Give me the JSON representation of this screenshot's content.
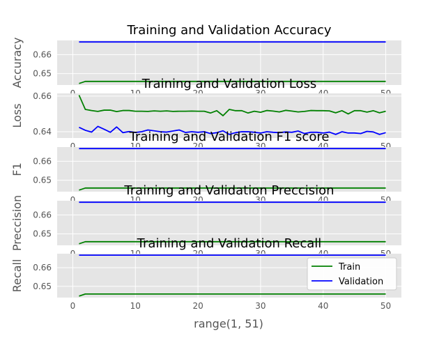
{
  "colors": {
    "train": "#008000",
    "validation": "#0000ff",
    "panel_bg": "#e5e5e5",
    "grid": "#ffffff"
  },
  "legend": {
    "train_label": "Train",
    "validation_label": "Validation",
    "placement": "lower-right-of-last-panel"
  },
  "xlabel": "range(1, 51)",
  "chart_data": [
    {
      "type": "line",
      "title": "Training and Validation Accuracy",
      "ylabel": "Accuracy",
      "xlim": [
        -2.5,
        52.5
      ],
      "ylim": [
        0.644,
        0.6675
      ],
      "yticks": [
        "0.65",
        "0.66"
      ],
      "ytick_values": [
        0.65,
        0.66
      ],
      "xticks": [
        "0",
        "10",
        "20",
        "30",
        "40",
        "50"
      ],
      "xtick_values": [
        0,
        10,
        20,
        30,
        40,
        50
      ],
      "x": [
        1,
        2,
        3,
        4,
        5,
        6,
        7,
        8,
        9,
        10,
        11,
        12,
        13,
        14,
        15,
        16,
        17,
        18,
        19,
        20,
        21,
        22,
        23,
        24,
        25,
        26,
        27,
        28,
        29,
        30,
        31,
        32,
        33,
        34,
        35,
        36,
        37,
        38,
        39,
        40,
        41,
        42,
        43,
        44,
        45,
        46,
        47,
        48,
        49,
        50
      ],
      "series": [
        {
          "name": "Train",
          "values": [
            0.6448,
            0.6459,
            0.6459,
            0.6459,
            0.6459,
            0.6459,
            0.6459,
            0.6459,
            0.6459,
            0.6459,
            0.6459,
            0.6459,
            0.6459,
            0.6459,
            0.6459,
            0.6459,
            0.6459,
            0.6459,
            0.6459,
            0.6459,
            0.6459,
            0.6459,
            0.6459,
            0.6459,
            0.6459,
            0.6459,
            0.6459,
            0.6459,
            0.6459,
            0.6459,
            0.6459,
            0.6459,
            0.6459,
            0.6459,
            0.6459,
            0.6459,
            0.6459,
            0.6459,
            0.6459,
            0.6459,
            0.6459,
            0.6459,
            0.6459,
            0.6459,
            0.6459,
            0.6459,
            0.6459,
            0.6459,
            0.6459,
            0.6459
          ]
        },
        {
          "name": "Validation",
          "values": [
            0.6667,
            0.6667,
            0.6667,
            0.6667,
            0.6667,
            0.6667,
            0.6667,
            0.6667,
            0.6667,
            0.6667,
            0.6667,
            0.6667,
            0.6667,
            0.6667,
            0.6667,
            0.6667,
            0.6667,
            0.6667,
            0.6667,
            0.6667,
            0.6667,
            0.6667,
            0.6667,
            0.6667,
            0.6667,
            0.6667,
            0.6667,
            0.6667,
            0.6667,
            0.6667,
            0.6667,
            0.6667,
            0.6667,
            0.6667,
            0.6667,
            0.6667,
            0.6667,
            0.6667,
            0.6667,
            0.6667,
            0.6667,
            0.6667,
            0.6667,
            0.6667,
            0.6667,
            0.6667,
            0.6667,
            0.6667,
            0.6667,
            0.6667
          ]
        }
      ]
    },
    {
      "type": "line",
      "title": "Training and Validation Loss",
      "ylabel": "Loss",
      "xlim": [
        -2.5,
        52.5
      ],
      "ylim": [
        0.6365,
        0.6615
      ],
      "yticks": [
        "0.64",
        "0.66"
      ],
      "ytick_values": [
        0.64,
        0.66
      ],
      "xticks": [
        "0",
        "10",
        "20",
        "30",
        "40",
        "50"
      ],
      "xtick_values": [
        0,
        10,
        20,
        30,
        40,
        50
      ],
      "x": [
        1,
        2,
        3,
        4,
        5,
        6,
        7,
        8,
        9,
        10,
        11,
        12,
        13,
        14,
        15,
        16,
        17,
        18,
        19,
        20,
        21,
        22,
        23,
        24,
        25,
        26,
        27,
        28,
        29,
        30,
        31,
        32,
        33,
        34,
        35,
        36,
        37,
        38,
        39,
        40,
        41,
        42,
        43,
        44,
        45,
        46,
        47,
        48,
        49,
        50
      ],
      "series": [
        {
          "name": "Train",
          "values": [
            0.6605,
            0.6525,
            0.6519,
            0.6514,
            0.6521,
            0.6521,
            0.6513,
            0.6519,
            0.6519,
            0.6515,
            0.6515,
            0.6514,
            0.6517,
            0.6515,
            0.6517,
            0.6514,
            0.6515,
            0.6515,
            0.6516,
            0.6515,
            0.6515,
            0.6505,
            0.6518,
            0.649,
            0.6525,
            0.6518,
            0.6518,
            0.6505,
            0.6515,
            0.6509,
            0.6519,
            0.6516,
            0.6511,
            0.652,
            0.6516,
            0.6511,
            0.6514,
            0.6519,
            0.6518,
            0.6518,
            0.6517,
            0.6506,
            0.6518,
            0.65,
            0.6518,
            0.6518,
            0.651,
            0.6518,
            0.6506,
            0.6515
          ]
        },
        {
          "name": "Validation",
          "values": [
            0.6425,
            0.6408,
            0.6398,
            0.643,
            0.6414,
            0.6397,
            0.6427,
            0.6395,
            0.6401,
            0.6396,
            0.64,
            0.641,
            0.6405,
            0.64,
            0.6398,
            0.6404,
            0.641,
            0.6396,
            0.64,
            0.6397,
            0.64,
            0.639,
            0.6395,
            0.6405,
            0.6385,
            0.6395,
            0.64,
            0.64,
            0.6397,
            0.6393,
            0.64,
            0.6397,
            0.6395,
            0.6399,
            0.6397,
            0.6404,
            0.639,
            0.6397,
            0.6397,
            0.6393,
            0.6398,
            0.6385,
            0.64,
            0.6393,
            0.6393,
            0.639,
            0.6402,
            0.6399,
            0.6385,
            0.6395
          ]
        }
      ]
    },
    {
      "type": "line",
      "title": "Training and Validation F1 score",
      "ylabel": "F1",
      "xlim": [
        -2.5,
        52.5
      ],
      "ylim": [
        0.644,
        0.6675
      ],
      "yticks": [
        "0.65",
        "0.66"
      ],
      "ytick_values": [
        0.65,
        0.66
      ],
      "xticks": [
        "0",
        "10",
        "20",
        "30",
        "40",
        "50"
      ],
      "xtick_values": [
        0,
        10,
        20,
        30,
        40,
        50
      ],
      "x": [
        1,
        2,
        3,
        4,
        5,
        6,
        7,
        8,
        9,
        10,
        11,
        12,
        13,
        14,
        15,
        16,
        17,
        18,
        19,
        20,
        21,
        22,
        23,
        24,
        25,
        26,
        27,
        28,
        29,
        30,
        31,
        32,
        33,
        34,
        35,
        36,
        37,
        38,
        39,
        40,
        41,
        42,
        43,
        44,
        45,
        46,
        47,
        48,
        49,
        50
      ],
      "series": [
        {
          "name": "Train",
          "values": [
            0.6448,
            0.6459,
            0.6459,
            0.6459,
            0.6459,
            0.6459,
            0.6459,
            0.6459,
            0.6459,
            0.6459,
            0.6459,
            0.6459,
            0.6459,
            0.6459,
            0.6459,
            0.6459,
            0.6459,
            0.6459,
            0.6459,
            0.6459,
            0.6459,
            0.6459,
            0.6459,
            0.6459,
            0.6459,
            0.6459,
            0.6459,
            0.6459,
            0.6459,
            0.6459,
            0.6459,
            0.6459,
            0.6459,
            0.6459,
            0.6459,
            0.6459,
            0.6459,
            0.6459,
            0.6459,
            0.6459,
            0.6459,
            0.6459,
            0.6459,
            0.6459,
            0.6459,
            0.6459,
            0.6459,
            0.6459,
            0.6459,
            0.6459
          ]
        },
        {
          "name": "Validation",
          "values": [
            0.6667,
            0.6667,
            0.6667,
            0.6667,
            0.6667,
            0.6667,
            0.6667,
            0.6667,
            0.6667,
            0.6667,
            0.6667,
            0.6667,
            0.6667,
            0.6667,
            0.6667,
            0.6667,
            0.6667,
            0.6667,
            0.6667,
            0.6667,
            0.6667,
            0.6667,
            0.6667,
            0.6667,
            0.6667,
            0.6667,
            0.6667,
            0.6667,
            0.6667,
            0.6667,
            0.6667,
            0.6667,
            0.6667,
            0.6667,
            0.6667,
            0.6667,
            0.6667,
            0.6667,
            0.6667,
            0.6667,
            0.6667,
            0.6667,
            0.6667,
            0.6667,
            0.6667,
            0.6667,
            0.6667,
            0.6667,
            0.6667,
            0.6667
          ]
        }
      ]
    },
    {
      "type": "line",
      "title": "Training and Validation  Preccision",
      "ylabel": "Preccision",
      "xlim": [
        -2.5,
        52.5
      ],
      "ylim": [
        0.644,
        0.6675
      ],
      "yticks": [
        "0.65",
        "0.66"
      ],
      "ytick_values": [
        0.65,
        0.66
      ],
      "xticks": [
        "0",
        "10",
        "20",
        "30",
        "40",
        "50"
      ],
      "xtick_values": [
        0,
        10,
        20,
        30,
        40,
        50
      ],
      "x": [
        1,
        2,
        3,
        4,
        5,
        6,
        7,
        8,
        9,
        10,
        11,
        12,
        13,
        14,
        15,
        16,
        17,
        18,
        19,
        20,
        21,
        22,
        23,
        24,
        25,
        26,
        27,
        28,
        29,
        30,
        31,
        32,
        33,
        34,
        35,
        36,
        37,
        38,
        39,
        40,
        41,
        42,
        43,
        44,
        45,
        46,
        47,
        48,
        49,
        50
      ],
      "series": [
        {
          "name": "Train",
          "values": [
            0.6448,
            0.6459,
            0.6459,
            0.6459,
            0.6459,
            0.6459,
            0.6459,
            0.6459,
            0.6459,
            0.6459,
            0.6459,
            0.6459,
            0.6459,
            0.6459,
            0.6459,
            0.6459,
            0.6459,
            0.6459,
            0.6459,
            0.6459,
            0.6459,
            0.6459,
            0.6459,
            0.6459,
            0.6459,
            0.6459,
            0.6459,
            0.6459,
            0.6459,
            0.6459,
            0.6459,
            0.6459,
            0.6459,
            0.6459,
            0.6459,
            0.6459,
            0.6459,
            0.6459,
            0.6459,
            0.6459,
            0.6459,
            0.6459,
            0.6459,
            0.6459,
            0.6459,
            0.6459,
            0.6459,
            0.6459,
            0.6459,
            0.6459
          ]
        },
        {
          "name": "Validation",
          "values": [
            0.6667,
            0.6667,
            0.6667,
            0.6667,
            0.6667,
            0.6667,
            0.6667,
            0.6667,
            0.6667,
            0.6667,
            0.6667,
            0.6667,
            0.6667,
            0.6667,
            0.6667,
            0.6667,
            0.6667,
            0.6667,
            0.6667,
            0.6667,
            0.6667,
            0.6667,
            0.6667,
            0.6667,
            0.6667,
            0.6667,
            0.6667,
            0.6667,
            0.6667,
            0.6667,
            0.6667,
            0.6667,
            0.6667,
            0.6667,
            0.6667,
            0.6667,
            0.6667,
            0.6667,
            0.6667,
            0.6667,
            0.6667,
            0.6667,
            0.6667,
            0.6667,
            0.6667,
            0.6667,
            0.6667,
            0.6667,
            0.6667,
            0.6667
          ]
        }
      ]
    },
    {
      "type": "line",
      "title": "Training and Validation  Recall",
      "ylabel": "Recall",
      "xlim": [
        -2.5,
        52.5
      ],
      "ylim": [
        0.644,
        0.6675
      ],
      "yticks": [
        "0.65",
        "0.66"
      ],
      "ytick_values": [
        0.65,
        0.66
      ],
      "xticks": [
        "0",
        "10",
        "20",
        "30",
        "40",
        "50"
      ],
      "xtick_values": [
        0,
        10,
        20,
        30,
        40,
        50
      ],
      "x": [
        1,
        2,
        3,
        4,
        5,
        6,
        7,
        8,
        9,
        10,
        11,
        12,
        13,
        14,
        15,
        16,
        17,
        18,
        19,
        20,
        21,
        22,
        23,
        24,
        25,
        26,
        27,
        28,
        29,
        30,
        31,
        32,
        33,
        34,
        35,
        36,
        37,
        38,
        39,
        40,
        41,
        42,
        43,
        44,
        45,
        46,
        47,
        48,
        49,
        50
      ],
      "series": [
        {
          "name": "Train",
          "values": [
            0.6448,
            0.6459,
            0.6459,
            0.6459,
            0.6459,
            0.6459,
            0.6459,
            0.6459,
            0.6459,
            0.6459,
            0.6459,
            0.6459,
            0.6459,
            0.6459,
            0.6459,
            0.6459,
            0.6459,
            0.6459,
            0.6459,
            0.6459,
            0.6459,
            0.6459,
            0.6459,
            0.6459,
            0.6459,
            0.6459,
            0.6459,
            0.6459,
            0.6459,
            0.6459,
            0.6459,
            0.6459,
            0.6459,
            0.6459,
            0.6459,
            0.6459,
            0.6459,
            0.6459,
            0.6459,
            0.6459,
            0.6459,
            0.6459,
            0.6459,
            0.6459,
            0.6459,
            0.6459,
            0.6459,
            0.6459,
            0.6459,
            0.6459
          ]
        },
        {
          "name": "Validation",
          "values": [
            0.6667,
            0.6667,
            0.6667,
            0.6667,
            0.6667,
            0.6667,
            0.6667,
            0.6667,
            0.6667,
            0.6667,
            0.6667,
            0.6667,
            0.6667,
            0.6667,
            0.6667,
            0.6667,
            0.6667,
            0.6667,
            0.6667,
            0.6667,
            0.6667,
            0.6667,
            0.6667,
            0.6667,
            0.6667,
            0.6667,
            0.6667,
            0.6667,
            0.6667,
            0.6667,
            0.6667,
            0.6667,
            0.6667,
            0.6667,
            0.6667,
            0.6667,
            0.6667,
            0.6667,
            0.6667,
            0.6667,
            0.6667,
            0.6667,
            0.6667,
            0.6667,
            0.6667,
            0.6667,
            0.6667,
            0.6667,
            0.6667,
            0.6667
          ]
        }
      ]
    }
  ]
}
